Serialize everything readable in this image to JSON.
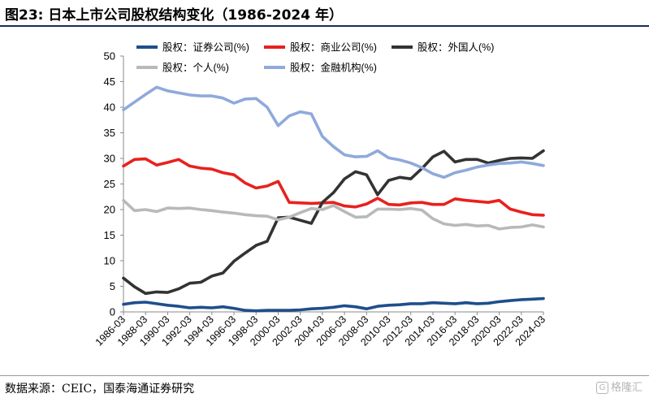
{
  "header": {
    "title": "图23:  日本上市公司股权结构变化（1986-2024 年）"
  },
  "footer": {
    "source": "数据来源：CEIC，国泰海通证券研究",
    "watermark": "格隆汇"
  },
  "chart_data": {
    "type": "line",
    "ylim": [
      0,
      50
    ],
    "yticks": [
      0,
      5,
      10,
      15,
      20,
      25,
      30,
      35,
      40,
      45,
      50
    ],
    "xtick_labels": [
      "1986-03",
      "1988-03",
      "1990-03",
      "1992-03",
      "1994-03",
      "1996-03",
      "1998-03",
      "2000-03",
      "2002-03",
      "2004-03",
      "2006-03",
      "2008-03",
      "2010-03",
      "2012-03",
      "2014-03",
      "2016-03",
      "2018-03",
      "2020-03",
      "2022-03",
      "2024-03"
    ],
    "x": [
      "1986-03",
      "1987-03",
      "1988-03",
      "1989-03",
      "1990-03",
      "1991-03",
      "1992-03",
      "1993-03",
      "1994-03",
      "1995-03",
      "1996-03",
      "1997-03",
      "1998-03",
      "1999-03",
      "2000-03",
      "2001-03",
      "2002-03",
      "2003-03",
      "2004-03",
      "2005-03",
      "2006-03",
      "2007-03",
      "2008-03",
      "2009-03",
      "2010-03",
      "2011-03",
      "2012-03",
      "2013-03",
      "2014-03",
      "2015-03",
      "2016-03",
      "2017-03",
      "2018-03",
      "2019-03",
      "2020-03",
      "2021-03",
      "2022-03",
      "2023-03",
      "2024-03"
    ],
    "series": [
      {
        "name": "股权：证券公司(%)",
        "color": "#1f4e8c",
        "values": [
          1.5,
          1.8,
          1.9,
          1.6,
          1.3,
          1.1,
          0.8,
          0.9,
          0.8,
          1.0,
          0.7,
          0.3,
          0.2,
          0.3,
          0.3,
          0.3,
          0.4,
          0.6,
          0.7,
          0.9,
          1.2,
          1.0,
          0.6,
          1.1,
          1.3,
          1.4,
          1.6,
          1.6,
          1.8,
          1.7,
          1.6,
          1.8,
          1.6,
          1.7,
          2.0,
          2.2,
          2.4,
          2.5,
          2.6
        ]
      },
      {
        "name": "股权：商业公司(%)",
        "color": "#e8211e",
        "values": [
          28.5,
          29.8,
          29.9,
          28.7,
          29.2,
          29.8,
          28.5,
          28.1,
          27.9,
          27.2,
          26.8,
          25.2,
          24.2,
          24.6,
          25.5,
          21.4,
          21.3,
          21.2,
          21.3,
          21.4,
          20.7,
          20.5,
          21.1,
          22.2,
          21.0,
          20.9,
          21.3,
          21.4,
          21.0,
          21.0,
          22.1,
          21.8,
          21.6,
          21.4,
          21.8,
          20.1,
          19.5,
          19.0,
          18.9
        ]
      },
      {
        "name": "股权：外国人(%)",
        "color": "#333333",
        "values": [
          6.6,
          4.9,
          3.6,
          3.9,
          3.8,
          4.5,
          5.6,
          5.8,
          7.0,
          7.6,
          9.9,
          11.5,
          13.0,
          13.8,
          18.4,
          18.5,
          17.9,
          17.3,
          21.4,
          23.3,
          26.0,
          27.4,
          26.8,
          22.9,
          25.7,
          26.3,
          26.0,
          28.0,
          30.3,
          31.4,
          29.3,
          29.8,
          29.8,
          29.1,
          29.6,
          30.0,
          30.1,
          30.0,
          31.5
        ]
      },
      {
        "name": "股权：个人(%)",
        "color": "#b7b9bb",
        "values": [
          21.8,
          19.8,
          20.0,
          19.6,
          20.3,
          20.2,
          20.3,
          20.0,
          19.8,
          19.5,
          19.3,
          19.0,
          18.8,
          18.7,
          18.0,
          18.5,
          19.4,
          20.2,
          20.0,
          20.8,
          19.6,
          18.5,
          18.6,
          20.1,
          20.1,
          20.0,
          20.2,
          19.9,
          18.2,
          17.2,
          16.9,
          17.1,
          16.8,
          16.9,
          16.2,
          16.5,
          16.6,
          17.0,
          16.6
        ]
      },
      {
        "name": "股权：金融机构(%)",
        "color": "#8fa9db",
        "values": [
          39.5,
          41.0,
          42.5,
          43.9,
          43.2,
          42.8,
          42.4,
          42.2,
          42.2,
          41.8,
          40.8,
          41.6,
          41.7,
          40.0,
          36.4,
          38.3,
          39.1,
          38.7,
          34.3,
          32.3,
          30.7,
          30.3,
          30.4,
          31.5,
          30.1,
          29.7,
          29.1,
          28.2,
          27.0,
          26.3,
          27.2,
          27.7,
          28.3,
          28.7,
          29.0,
          29.1,
          29.3,
          29.0,
          28.6
        ]
      }
    ]
  }
}
